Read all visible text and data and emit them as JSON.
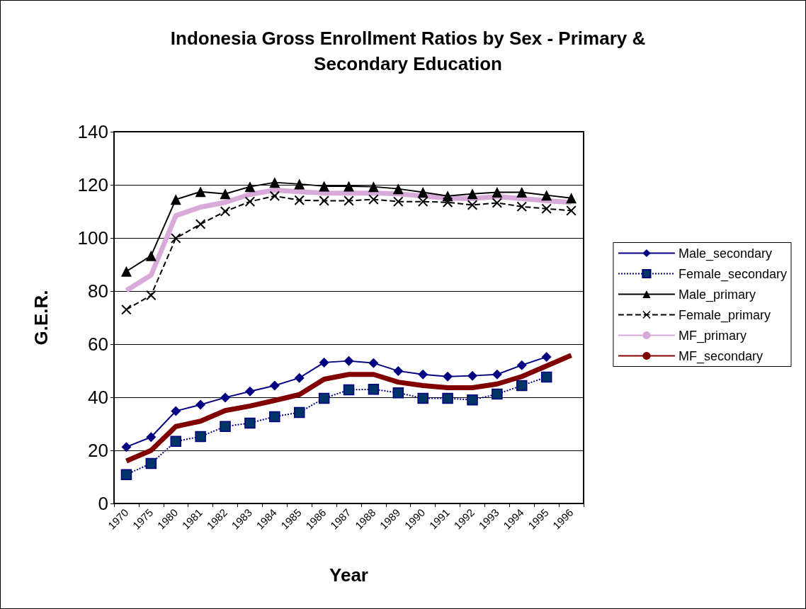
{
  "chart_data": {
    "type": "line",
    "title": "Indonesia Gross Enrollment Ratios by Sex - Primary &\nSecondary Education",
    "xlabel": "Year",
    "ylabel": "G.E.R.",
    "categories": [
      "1970",
      "1975",
      "1980",
      "1981",
      "1982",
      "1983",
      "1984",
      "1985",
      "1986",
      "1987",
      "1988",
      "1989",
      "1990",
      "1991",
      "1992",
      "1993",
      "1994",
      "1995",
      "1996"
    ],
    "ylim": [
      0,
      140
    ],
    "yticks": [
      0,
      20,
      40,
      60,
      80,
      100,
      120,
      140
    ],
    "grid": "y",
    "legend": "right",
    "series": [
      {
        "name": "Male_secondary",
        "color": "#000080",
        "marker": "diamond",
        "line_style": "solid",
        "values": [
          21.3,
          25,
          34.8,
          37.2,
          39.9,
          42.2,
          44.4,
          47.3,
          53.1,
          53.7,
          52.9,
          49.9,
          48.6,
          47.8,
          48.1,
          48.6,
          52.1,
          55.2,
          null
        ]
      },
      {
        "name": "Female_secondary",
        "color": "#003366",
        "marker": "square",
        "line_style": "dotted",
        "values": [
          10.9,
          15.1,
          23.4,
          25.2,
          29,
          30.3,
          32.7,
          34.3,
          39.6,
          42.8,
          43,
          41.7,
          39.6,
          39.6,
          39,
          41.2,
          44.4,
          47.6,
          null
        ]
      },
      {
        "name": "Male_primary",
        "color": "#000000",
        "marker": "triangle",
        "line_style": "solid",
        "values": [
          87.4,
          93.3,
          114.5,
          117.4,
          116.6,
          119.3,
          120.9,
          120.3,
          119.5,
          119.5,
          119.3,
          118.5,
          117.2,
          115.8,
          116.6,
          117.2,
          117.2,
          116.1,
          115
        ]
      },
      {
        "name": "Female_primary",
        "color": "#000000",
        "marker": "cross",
        "line_style": "dashed",
        "values": [
          73,
          78.4,
          99.9,
          105.2,
          110,
          113.7,
          115.8,
          114.2,
          114,
          114,
          114.5,
          113.7,
          113.7,
          113.4,
          112.4,
          113.2,
          111.8,
          111,
          110.3
        ]
      },
      {
        "name": "MF_primary",
        "color": "#d9a9d9",
        "marker": "none",
        "line_style": "solid",
        "values": [
          80.2,
          86,
          108.4,
          111.6,
          113.4,
          116.4,
          118,
          117.4,
          116.9,
          116.9,
          116.9,
          116.6,
          115.8,
          115,
          114.8,
          115.6,
          114.8,
          114,
          113.4
        ]
      },
      {
        "name": "MF_secondary",
        "color": "#800000",
        "marker": "none",
        "line_style": "solid",
        "values": [
          16,
          20,
          29,
          31,
          35,
          36.7,
          38.8,
          41,
          46.8,
          48.6,
          48.6,
          45.7,
          44.4,
          43.6,
          43.6,
          45,
          47.8,
          51.8,
          55.8
        ]
      }
    ]
  }
}
